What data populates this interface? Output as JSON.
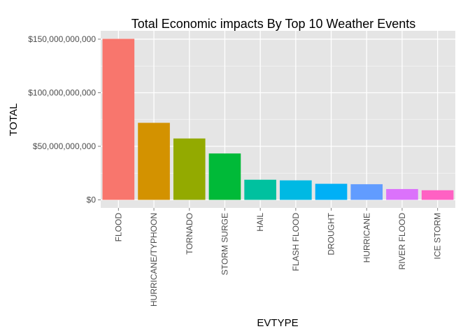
{
  "chart_data": {
    "type": "bar",
    "title": "Total Economic impacts By Top 10 Weather Events",
    "xlabel": "EVTYPE",
    "ylabel": "TOTAL",
    "categories": [
      "FLOOD",
      "HURRICANE/TYPHOON",
      "TORNADO",
      "STORM SURGE",
      "HAIL",
      "FLASH FLOOD",
      "DROUGHT",
      "HURRICANE",
      "RIVER FLOOD",
      "ICE STORM"
    ],
    "values": [
      150300000000,
      71900000000,
      57300000000,
      43300000000,
      18800000000,
      18200000000,
      15000000000,
      14600000000,
      10100000000,
      8970000000
    ],
    "colors": [
      "#F8766D",
      "#D39200",
      "#93AA00",
      "#00BA38",
      "#00C19F",
      "#00B9E3",
      "#00B0F6",
      "#619CFF",
      "#DB72FB",
      "#FF61C3"
    ],
    "ylim": [
      -7500000000,
      157800000000
    ],
    "yticks": [
      0,
      50000000000,
      100000000000,
      150000000000
    ],
    "ytick_labels": [
      "$0",
      "$50,000,000,000",
      "$100,000,000,000",
      "$150,000,000,000"
    ],
    "grid": true,
    "panel_background": "#E5E5E5",
    "grid_color": "#FFFFFF",
    "legend": "none"
  }
}
